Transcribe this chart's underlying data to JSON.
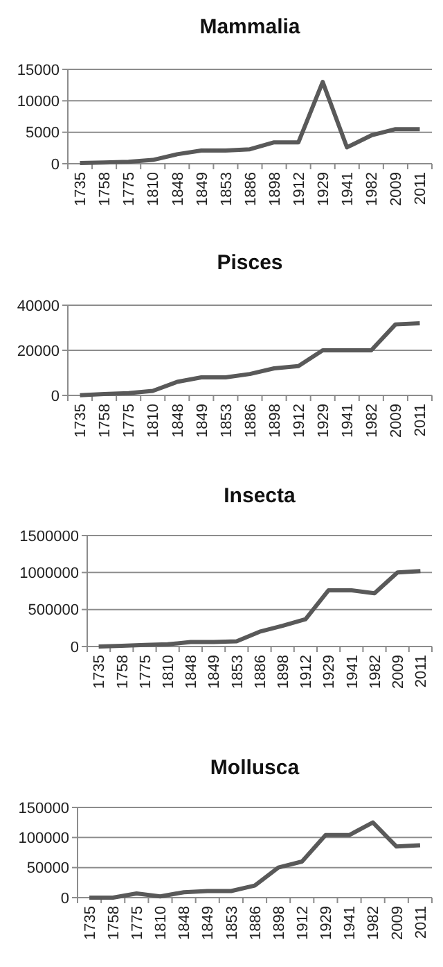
{
  "chart_data": [
    {
      "type": "line",
      "title": "Mammalia",
      "categories": [
        "1735",
        "1758",
        "1775",
        "1810",
        "1848",
        "1849",
        "1853",
        "1886",
        "1898",
        "1912",
        "1929",
        "1941",
        "1982",
        "2009",
        "2011"
      ],
      "series": [
        {
          "color": "#595959",
          "values": [
            100,
            200,
            300,
            600,
            1500,
            2100,
            2100,
            2300,
            3400,
            3400,
            13000,
            2600,
            4500,
            5500,
            5500
          ]
        }
      ],
      "ylim": [
        0,
        15000
      ],
      "yticks": [
        0,
        5000,
        10000,
        15000
      ],
      "grid": "y"
    },
    {
      "type": "line",
      "title": "Pisces",
      "categories": [
        "1735",
        "1758",
        "1775",
        "1810",
        "1848",
        "1849",
        "1853",
        "1886",
        "1898",
        "1912",
        "1929",
        "1941",
        "1982",
        "2009",
        "2011"
      ],
      "series": [
        {
          "color": "#595959",
          "values": [
            100,
            600,
            1000,
            2000,
            6000,
            8000,
            8000,
            9500,
            12000,
            13000,
            20000,
            20000,
            20000,
            31500,
            32000
          ]
        }
      ],
      "ylim": [
        0,
        40000
      ],
      "yticks": [
        0,
        20000,
        40000
      ],
      "grid": "y"
    },
    {
      "type": "line",
      "title": "Insecta",
      "categories": [
        "1735",
        "1758",
        "1775",
        "1810",
        "1848",
        "1849",
        "1853",
        "1886",
        "1898",
        "1912",
        "1929",
        "1941",
        "1982",
        "2009",
        "2011"
      ],
      "series": [
        {
          "color": "#595959",
          "values": [
            0,
            10000,
            20000,
            30000,
            60000,
            60000,
            70000,
            200000,
            280000,
            370000,
            760000,
            760000,
            720000,
            1000000,
            1020000
          ]
        }
      ],
      "ylim": [
        0,
        1500000
      ],
      "yticks": [
        0,
        500000,
        1000000,
        1500000
      ],
      "grid": "y"
    },
    {
      "type": "line",
      "title": "Mollusca",
      "categories": [
        "1735",
        "1758",
        "1775",
        "1810",
        "1848",
        "1849",
        "1853",
        "1886",
        "1898",
        "1912",
        "1929",
        "1941",
        "1982",
        "2009",
        "2011"
      ],
      "series": [
        {
          "color": "#595959",
          "values": [
            0,
            0,
            7000,
            2000,
            9000,
            11000,
            11000,
            20000,
            50000,
            60000,
            104000,
            104000,
            125000,
            85000,
            87000
          ]
        }
      ],
      "ylim": [
        0,
        150000
      ],
      "yticks": [
        0,
        50000,
        100000,
        150000
      ],
      "grid": "y"
    }
  ]
}
